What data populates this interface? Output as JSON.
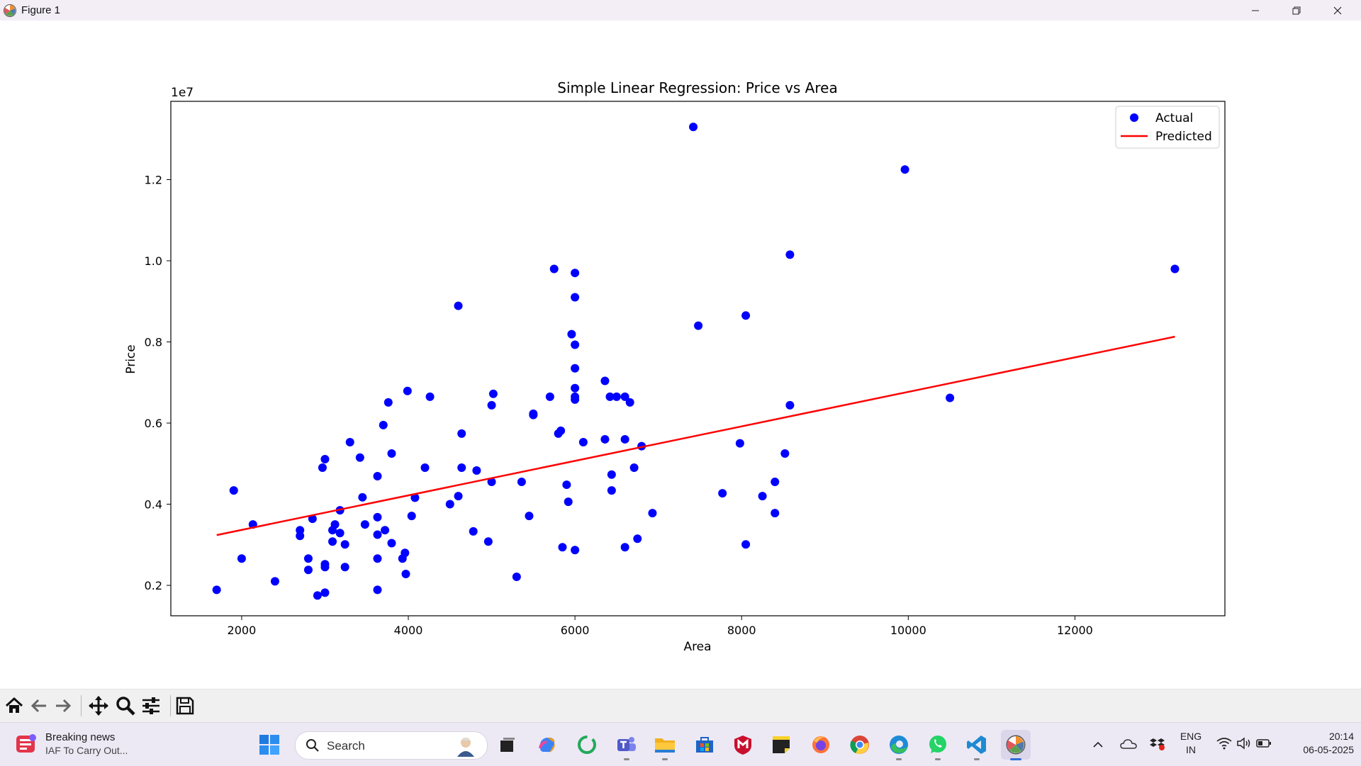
{
  "window": {
    "title": "Figure 1",
    "icons": {
      "app": "matplotlib-icon",
      "minimize": "minimize-icon",
      "maximize": "restore-icon",
      "close": "close-icon"
    }
  },
  "toolbar": {
    "buttons": [
      "home-icon",
      "back-arrow-icon",
      "forward-arrow-icon",
      "pan-icon",
      "zoom-icon",
      "configure-subplots-icon",
      "save-icon"
    ]
  },
  "chart_data": {
    "type": "scatter",
    "title": "Simple Linear Regression: Price vs Area",
    "xlabel": "Area",
    "ylabel": "Price",
    "offset_text": "1e7",
    "xlim": [
      1150,
      13800
    ],
    "ylim": [
      0.125,
      1.393
    ],
    "xticks": [
      2000,
      4000,
      6000,
      8000,
      10000,
      12000
    ],
    "xtick_labels": [
      "2000",
      "4000",
      "6000",
      "8000",
      "10000",
      "12000"
    ],
    "yticks": [
      0.2,
      0.4,
      0.6,
      0.8,
      1.0,
      1.2
    ],
    "ytick_labels": [
      "0.2",
      "0.4",
      "0.6",
      "0.8",
      "1.0",
      "1.2"
    ],
    "legend_position": "upper right",
    "series": [
      {
        "name": "Actual",
        "kind": "scatter",
        "color": "#0000ff",
        "points": [
          [
            1700,
            0.189
          ],
          [
            1905,
            0.434
          ],
          [
            2000,
            0.266
          ],
          [
            2135,
            0.35
          ],
          [
            2400,
            0.21
          ],
          [
            2700,
            0.322
          ],
          [
            2700,
            0.336
          ],
          [
            2800,
            0.238
          ],
          [
            2800,
            0.266
          ],
          [
            2850,
            0.364
          ],
          [
            2910,
            0.175
          ],
          [
            2970,
            0.49
          ],
          [
            3000,
            0.182
          ],
          [
            3000,
            0.245
          ],
          [
            3000,
            0.252
          ],
          [
            3000,
            0.511
          ],
          [
            3090,
            0.308
          ],
          [
            3090,
            0.336
          ],
          [
            3120,
            0.35
          ],
          [
            3180,
            0.329
          ],
          [
            3180,
            0.385
          ],
          [
            3240,
            0.245
          ],
          [
            3240,
            0.301
          ],
          [
            3300,
            0.553
          ],
          [
            3420,
            0.515
          ],
          [
            3450,
            0.417
          ],
          [
            3480,
            0.35
          ],
          [
            3630,
            0.189
          ],
          [
            3630,
            0.266
          ],
          [
            3630,
            0.325
          ],
          [
            3630,
            0.368
          ],
          [
            3630,
            0.469
          ],
          [
            3700,
            0.595
          ],
          [
            3720,
            0.336
          ],
          [
            3760,
            0.651
          ],
          [
            3800,
            0.304
          ],
          [
            3800,
            0.525
          ],
          [
            3930,
            0.266
          ],
          [
            3960,
            0.28
          ],
          [
            3970,
            0.228
          ],
          [
            3990,
            0.679
          ],
          [
            4040,
            0.371
          ],
          [
            4080,
            0.416
          ],
          [
            4200,
            0.49
          ],
          [
            4260,
            0.665
          ],
          [
            4500,
            0.4
          ],
          [
            4600,
            0.889
          ],
          [
            4600,
            0.42
          ],
          [
            4640,
            0.49
          ],
          [
            4640,
            0.574
          ],
          [
            4780,
            0.333
          ],
          [
            4820,
            0.483
          ],
          [
            4960,
            0.308
          ],
          [
            5000,
            0.644
          ],
          [
            5000,
            0.455
          ],
          [
            5020,
            0.672
          ],
          [
            5300,
            0.221
          ],
          [
            5360,
            0.455
          ],
          [
            5450,
            0.371
          ],
          [
            5500,
            0.623
          ],
          [
            5500,
            0.62
          ],
          [
            5700,
            0.665
          ],
          [
            5750,
            0.98
          ],
          [
            5800,
            0.574
          ],
          [
            5830,
            0.581
          ],
          [
            5850,
            0.294
          ],
          [
            5900,
            0.448
          ],
          [
            5920,
            0.406
          ],
          [
            5960,
            0.819
          ],
          [
            6000,
            0.97
          ],
          [
            6000,
            0.91
          ],
          [
            6000,
            0.793
          ],
          [
            6000,
            0.735
          ],
          [
            6000,
            0.686
          ],
          [
            6000,
            0.665
          ],
          [
            6000,
            0.658
          ],
          [
            6000,
            0.287
          ],
          [
            6100,
            0.553
          ],
          [
            6360,
            0.704
          ],
          [
            6360,
            0.56
          ],
          [
            6420,
            0.665
          ],
          [
            6440,
            0.434
          ],
          [
            6440,
            0.473
          ],
          [
            6500,
            0.665
          ],
          [
            6600,
            0.665
          ],
          [
            6600,
            0.56
          ],
          [
            6600,
            0.294
          ],
          [
            6660,
            0.651
          ],
          [
            6710,
            0.49
          ],
          [
            6750,
            0.315
          ],
          [
            6800,
            0.543
          ],
          [
            6930,
            0.378
          ],
          [
            7420,
            1.33
          ],
          [
            7480,
            0.84
          ],
          [
            7770,
            0.427
          ],
          [
            7980,
            0.55
          ],
          [
            8050,
            0.865
          ],
          [
            8050,
            0.301
          ],
          [
            8250,
            0.42
          ],
          [
            8400,
            0.378
          ],
          [
            8400,
            0.455
          ],
          [
            8520,
            0.525
          ],
          [
            8580,
            1.015
          ],
          [
            8580,
            0.644
          ],
          [
            9960,
            1.225
          ],
          [
            10500,
            0.662
          ],
          [
            13200,
            0.98
          ]
        ]
      },
      {
        "name": "Predicted",
        "kind": "line",
        "color": "#ff0000",
        "points": [
          [
            1700,
            0.324
          ],
          [
            13200,
            0.813
          ]
        ]
      }
    ]
  },
  "taskbar": {
    "news": {
      "title": "Breaking news",
      "subtitle": "IAF To Carry Out...",
      "icon": "news-widget-icon"
    },
    "start": "windows-start-icon",
    "search_label": "Search",
    "apps": [
      "task-view-icon",
      "copilot-icon",
      "refresh-app-icon",
      "teams-icon",
      "file-explorer-icon",
      "microsoft-store-icon",
      "mcafee-icon",
      "sticky-notes-icon",
      "firefox-icon",
      "chrome-icon",
      "edge-icon",
      "whatsapp-icon",
      "vscode-icon",
      "matplotlib-icon"
    ],
    "tray": {
      "language_top": "ENG",
      "language_bottom": "IN",
      "time": "20:14",
      "date": "06-05-2025",
      "icons": [
        "chevron-up-icon",
        "onedrive-icon",
        "dropbox-icon",
        "wifi-icon",
        "volume-icon",
        "battery-icon"
      ]
    }
  }
}
